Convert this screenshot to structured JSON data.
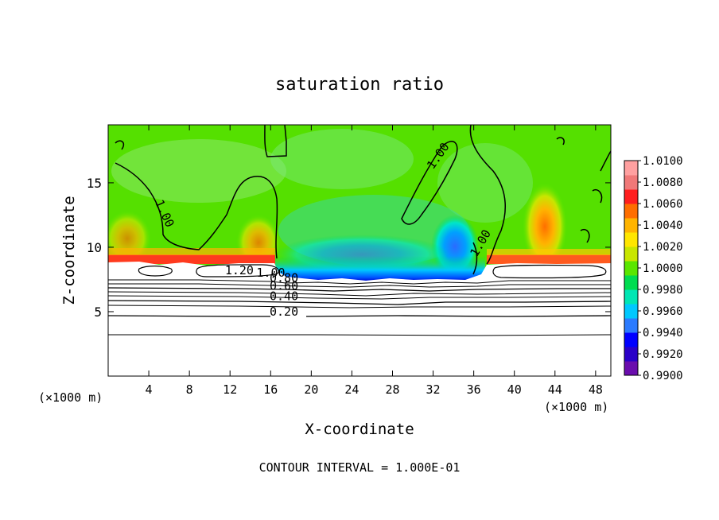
{
  "chart_data": {
    "type": "heatmap",
    "title": "saturation ratio",
    "xlabel": "X-coordinate",
    "ylabel": "Z-coordinate",
    "x_unit_left": "(×1000 m)",
    "x_unit_right": "(×1000 m)",
    "footer": "CONTOUR INTERVAL = 1.000E-01",
    "xlim": [
      0,
      49.5
    ],
    "ylim": [
      0,
      19.5
    ],
    "x_ticks": [
      4,
      8,
      12,
      16,
      20,
      24,
      28,
      32,
      36,
      40,
      44,
      48
    ],
    "y_ticks": [
      5,
      10,
      15
    ],
    "colorbar": {
      "labels": [
        "1.0100",
        "1.0080",
        "1.0060",
        "1.0040",
        "1.0020",
        "1.0000",
        "0.9980",
        "0.9960",
        "0.9940",
        "0.9920",
        "0.9900"
      ],
      "range": [
        0.99,
        1.01
      ],
      "colors": [
        "#6a0dad",
        "#2a00c8",
        "#0000ff",
        "#2b7bff",
        "#00c8ff",
        "#00e6b4",
        "#00dc50",
        "#5ae600",
        "#c8e600",
        "#ffe600",
        "#ffb400",
        "#ff6e00",
        "#ff1e1e",
        "#f07878",
        "#ffa0a0"
      ]
    },
    "field_description": {
      "background_value": 1.0,
      "cloud_region_value_above": 1.0,
      "subsaturated_layer_top_z": 7.6,
      "unsaturated_region_color": "#ffffff"
    },
    "contour_labels": [
      {
        "text": "1.20",
        "x": 11.5,
        "z": 7.9
      },
      {
        "text": "1.00",
        "x": 14.6,
        "z": 7.7
      },
      {
        "text": "0.80",
        "x": 15.9,
        "z": 7.3
      },
      {
        "text": "0.60",
        "x": 15.9,
        "z": 6.7
      },
      {
        "text": "0.40",
        "x": 15.9,
        "z": 5.9
      },
      {
        "text": "0.20",
        "x": 15.9,
        "z": 4.7
      },
      {
        "text": "1.00",
        "x": 4.6,
        "z": 13.5
      },
      {
        "text": "1.00",
        "x": 32.0,
        "z": 16.0
      },
      {
        "text": "1.00",
        "x": 36.3,
        "z": 9.2
      }
    ],
    "contour_levels": [
      0.2,
      0.4,
      0.6,
      0.8,
      1.0,
      1.2
    ],
    "grid": false,
    "legend": "right"
  }
}
